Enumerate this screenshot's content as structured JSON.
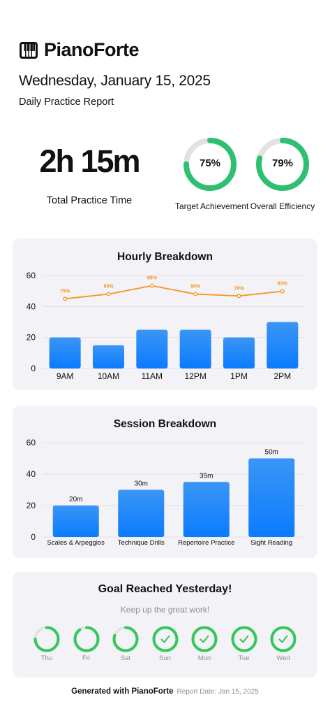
{
  "app": {
    "name": "PianoForte",
    "logo_icon": "piano-keys-icon"
  },
  "report": {
    "date": "Wednesday, January 15, 2025",
    "subtitle": "Daily Practice Report"
  },
  "total": {
    "value": "2h 15m",
    "label": "Total Practice Time"
  },
  "rings": [
    {
      "value": "75%",
      "label": "Target Achievement",
      "fraction": 0.75
    },
    {
      "value": "79%",
      "label": "Overall Efficiency",
      "fraction": 0.79
    }
  ],
  "chart_data": [
    {
      "type": "bar",
      "title": "Hourly Breakdown",
      "categories": [
        "9AM",
        "10AM",
        "11AM",
        "12PM",
        "1PM",
        "2PM"
      ],
      "series": [
        {
          "type": "bar",
          "values": [
            20,
            15,
            25,
            25,
            20,
            30
          ]
        },
        {
          "type": "line",
          "values": [
            75,
            80,
            89,
            80,
            78,
            83
          ],
          "labels": [
            "75%",
            "80%",
            "89%",
            "80%",
            "78%",
            "83%"
          ]
        }
      ],
      "ylim": [
        0,
        60
      ],
      "yticks": [
        0,
        20,
        40,
        60
      ],
      "grid": true
    },
    {
      "type": "bar",
      "title": "Session Breakdown",
      "categories": [
        "Scales & Arpeggios",
        "Technique Drills",
        "Repertoire Practice",
        "Sight Reading"
      ],
      "values": [
        20,
        30,
        35,
        50
      ],
      "labels": [
        "20m",
        "30m",
        "35m",
        "50m"
      ],
      "ylim": [
        0,
        60
      ],
      "yticks": [
        0,
        20,
        40,
        60
      ],
      "grid": true
    }
  ],
  "goal": {
    "title": "Goal Reached Yesterday!",
    "subtitle": "Keep up the great work!",
    "days": [
      {
        "label": "Thu",
        "fraction": 0.75,
        "checked": false
      },
      {
        "label": "Fri",
        "fraction": 0.9,
        "checked": false
      },
      {
        "label": "Sat",
        "fraction": 0.8,
        "checked": false
      },
      {
        "label": "Sun",
        "fraction": 1.0,
        "checked": true
      },
      {
        "label": "Mon",
        "fraction": 1.0,
        "checked": true
      },
      {
        "label": "Tue",
        "fraction": 1.0,
        "checked": true
      },
      {
        "label": "Wed",
        "fraction": 1.0,
        "checked": true
      }
    ],
    "check_icon": "checkmark-icon"
  },
  "footer": {
    "generated": "Generated with PianoForte",
    "report_date": "Report Date: Jan 15, 2025"
  },
  "colors": {
    "accent": "#34c759",
    "bar_top": "#3b95f5",
    "bar_bottom": "#0a7cff",
    "line": "#f7941d",
    "card_bg": "#f2f2f7",
    "muted": "#8e8e93"
  }
}
